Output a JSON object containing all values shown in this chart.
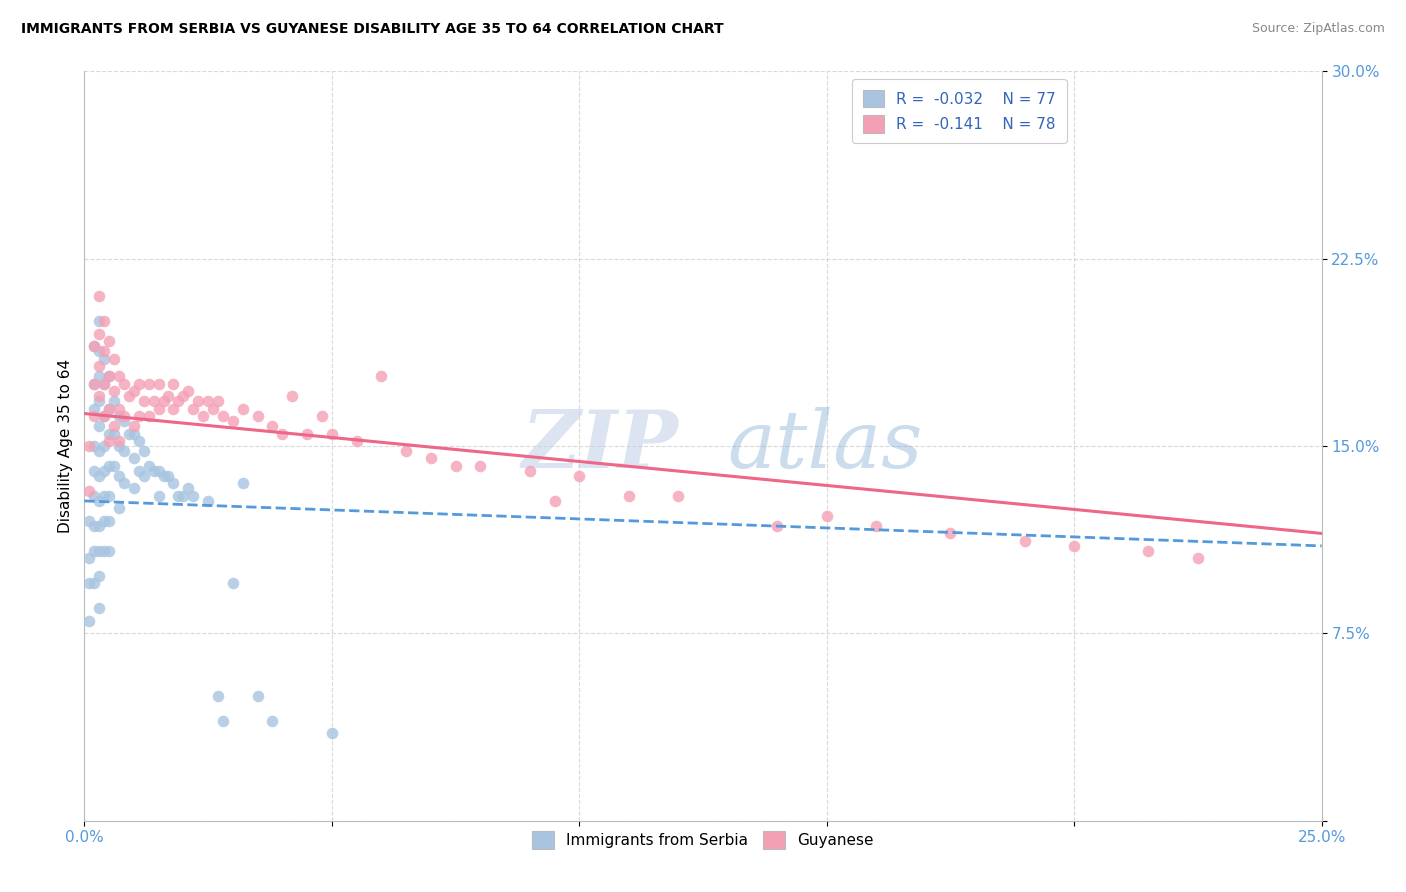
{
  "title": "IMMIGRANTS FROM SERBIA VS GUYANESE DISABILITY AGE 35 TO 64 CORRELATION CHART",
  "source": "Source: ZipAtlas.com",
  "ylabel": "Disability Age 35 to 64",
  "xlim": [
    0.0,
    0.25
  ],
  "ylim": [
    0.0,
    0.3
  ],
  "xticks": [
    0.0,
    0.05,
    0.1,
    0.15,
    0.2,
    0.25
  ],
  "xticklabels": [
    "0.0%",
    "",
    "",
    "",
    "",
    "25.0%"
  ],
  "yticks": [
    0.0,
    0.075,
    0.15,
    0.225,
    0.3
  ],
  "yticklabels": [
    "",
    "7.5%",
    "15.0%",
    "22.5%",
    "30.0%"
  ],
  "legend_r1": "R =  -0.032",
  "legend_n1": "N = 77",
  "legend_r2": "R =  -0.141",
  "legend_n2": "N = 78",
  "series1_label": "Immigrants from Serbia",
  "series2_label": "Guyanese",
  "color1": "#a8c4e0",
  "color2": "#f4a0b4",
  "line1_color": "#5599dd",
  "line2_color": "#ee6688",
  "background_color": "#ffffff",
  "grid_color": "#d0d0d0",
  "watermark_color": "#d0dff0",
  "serbia_x": [
    0.001,
    0.001,
    0.001,
    0.001,
    0.002,
    0.002,
    0.002,
    0.002,
    0.002,
    0.002,
    0.002,
    0.002,
    0.002,
    0.003,
    0.003,
    0.003,
    0.003,
    0.003,
    0.003,
    0.003,
    0.003,
    0.003,
    0.003,
    0.003,
    0.003,
    0.004,
    0.004,
    0.004,
    0.004,
    0.004,
    0.004,
    0.004,
    0.004,
    0.005,
    0.005,
    0.005,
    0.005,
    0.005,
    0.005,
    0.005,
    0.006,
    0.006,
    0.006,
    0.007,
    0.007,
    0.007,
    0.007,
    0.008,
    0.008,
    0.008,
    0.009,
    0.01,
    0.01,
    0.01,
    0.011,
    0.011,
    0.012,
    0.012,
    0.013,
    0.014,
    0.015,
    0.015,
    0.016,
    0.017,
    0.018,
    0.019,
    0.02,
    0.021,
    0.022,
    0.025,
    0.027,
    0.028,
    0.03,
    0.032,
    0.035,
    0.038,
    0.05
  ],
  "serbia_y": [
    0.12,
    0.105,
    0.095,
    0.08,
    0.19,
    0.175,
    0.165,
    0.15,
    0.14,
    0.13,
    0.118,
    0.108,
    0.095,
    0.2,
    0.188,
    0.178,
    0.168,
    0.158,
    0.148,
    0.138,
    0.128,
    0.118,
    0.108,
    0.098,
    0.085,
    0.185,
    0.175,
    0.162,
    0.15,
    0.14,
    0.13,
    0.12,
    0.108,
    0.178,
    0.165,
    0.155,
    0.142,
    0.13,
    0.12,
    0.108,
    0.168,
    0.155,
    0.142,
    0.162,
    0.15,
    0.138,
    0.125,
    0.16,
    0.148,
    0.135,
    0.155,
    0.155,
    0.145,
    0.133,
    0.152,
    0.14,
    0.148,
    0.138,
    0.142,
    0.14,
    0.14,
    0.13,
    0.138,
    0.138,
    0.135,
    0.13,
    0.13,
    0.133,
    0.13,
    0.128,
    0.05,
    0.04,
    0.095,
    0.135,
    0.05,
    0.04,
    0.035
  ],
  "guyanese_x": [
    0.001,
    0.001,
    0.002,
    0.002,
    0.002,
    0.003,
    0.003,
    0.003,
    0.003,
    0.004,
    0.004,
    0.004,
    0.004,
    0.005,
    0.005,
    0.005,
    0.005,
    0.006,
    0.006,
    0.006,
    0.007,
    0.007,
    0.007,
    0.008,
    0.008,
    0.009,
    0.01,
    0.01,
    0.011,
    0.011,
    0.012,
    0.013,
    0.013,
    0.014,
    0.015,
    0.015,
    0.016,
    0.017,
    0.018,
    0.018,
    0.019,
    0.02,
    0.021,
    0.022,
    0.023,
    0.024,
    0.025,
    0.026,
    0.027,
    0.028,
    0.03,
    0.032,
    0.035,
    0.038,
    0.04,
    0.042,
    0.045,
    0.048,
    0.05,
    0.055,
    0.06,
    0.065,
    0.07,
    0.075,
    0.08,
    0.09,
    0.095,
    0.1,
    0.11,
    0.12,
    0.14,
    0.15,
    0.16,
    0.175,
    0.19,
    0.2,
    0.215,
    0.225
  ],
  "guyanese_y": [
    0.15,
    0.132,
    0.19,
    0.175,
    0.162,
    0.21,
    0.195,
    0.182,
    0.17,
    0.2,
    0.188,
    0.175,
    0.162,
    0.192,
    0.178,
    0.165,
    0.152,
    0.185,
    0.172,
    0.158,
    0.178,
    0.165,
    0.152,
    0.175,
    0.162,
    0.17,
    0.172,
    0.158,
    0.175,
    0.162,
    0.168,
    0.175,
    0.162,
    0.168,
    0.165,
    0.175,
    0.168,
    0.17,
    0.175,
    0.165,
    0.168,
    0.17,
    0.172,
    0.165,
    0.168,
    0.162,
    0.168,
    0.165,
    0.168,
    0.162,
    0.16,
    0.165,
    0.162,
    0.158,
    0.155,
    0.17,
    0.155,
    0.162,
    0.155,
    0.152,
    0.178,
    0.148,
    0.145,
    0.142,
    0.142,
    0.14,
    0.128,
    0.138,
    0.13,
    0.13,
    0.118,
    0.122,
    0.118,
    0.115,
    0.112,
    0.11,
    0.108,
    0.105
  ]
}
